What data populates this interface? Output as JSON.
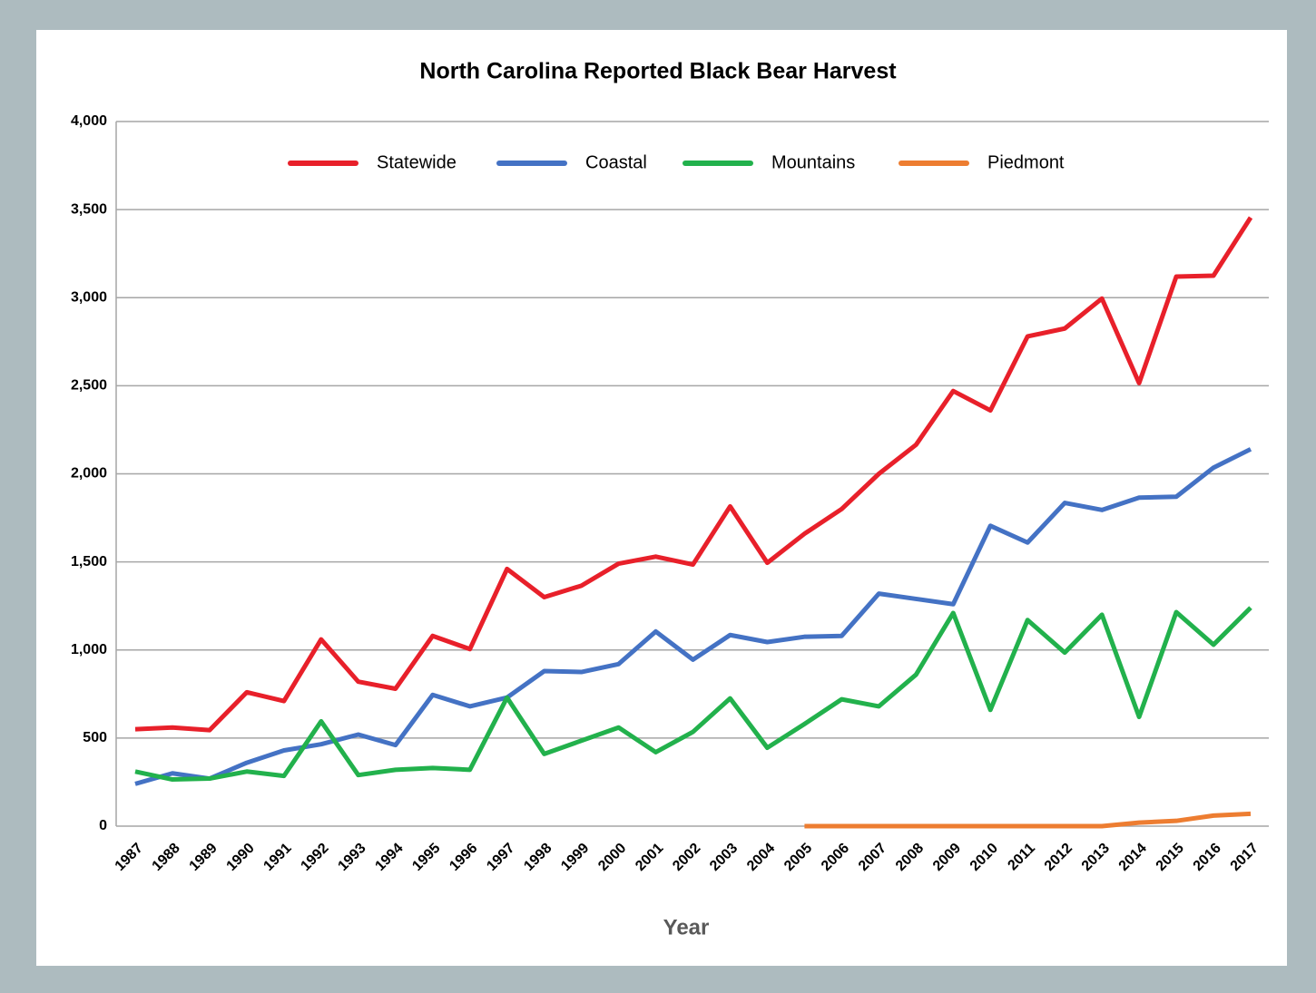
{
  "chart_data": {
    "type": "line",
    "title": "North Carolina Reported Black Bear Harvest",
    "x_label": "Year",
    "categories": [
      "1987",
      "1988",
      "1989",
      "1990",
      "1991",
      "1992",
      "1993",
      "1994",
      "1995",
      "1996",
      "1997",
      "1998",
      "1999",
      "2000",
      "2001",
      "2002",
      "2003",
      "2004",
      "2005",
      "2006",
      "2007",
      "2008",
      "2009",
      "2010",
      "2011",
      "2012",
      "2013",
      "2014",
      "2015",
      "2016",
      "2017"
    ],
    "series": [
      {
        "name": "Statewide",
        "color": "#e8202a",
        "values": [
          550,
          560,
          545,
          760,
          710,
          1060,
          820,
          780,
          1080,
          1005,
          1460,
          1300,
          1365,
          1490,
          1530,
          1485,
          1815,
          1495,
          1660,
          1800,
          2000,
          2165,
          2470,
          2360,
          2780,
          2825,
          2995,
          2515,
          3120,
          3125,
          3455
        ]
      },
      {
        "name": "Coastal",
        "color": "#4472c4",
        "values": [
          240,
          300,
          270,
          360,
          430,
          465,
          520,
          460,
          745,
          680,
          730,
          880,
          875,
          920,
          1105,
          945,
          1085,
          1045,
          1075,
          1080,
          1320,
          1290,
          1260,
          1705,
          1610,
          1835,
          1795,
          1865,
          1870,
          2035,
          2140
        ]
      },
      {
        "name": "Mountains",
        "color": "#22b14c",
        "values": [
          310,
          265,
          270,
          310,
          285,
          595,
          290,
          320,
          330,
          320,
          730,
          410,
          485,
          560,
          420,
          535,
          725,
          445,
          580,
          720,
          680,
          860,
          1210,
          660,
          1170,
          985,
          1200,
          620,
          1215,
          1030,
          1240
        ]
      },
      {
        "name": "Piedmont",
        "color": "#ed7d31",
        "values": [
          null,
          null,
          null,
          null,
          null,
          null,
          null,
          null,
          null,
          null,
          null,
          null,
          null,
          null,
          null,
          null,
          null,
          null,
          0,
          0,
          0,
          0,
          0,
          0,
          0,
          0,
          0,
          20,
          30,
          60,
          70
        ]
      }
    ],
    "ylim": [
      0,
      4000
    ],
    "yticks": [
      0,
      500,
      {
        "value": 1000,
        "label": "1,000"
      },
      {
        "value": 1500,
        "label": "1,500"
      },
      {
        "value": 2000,
        "label": "2,000"
      },
      {
        "value": 2500,
        "label": "2,500"
      },
      {
        "value": 3000,
        "label": "3,000"
      },
      {
        "value": 3500,
        "label": "3,500"
      },
      {
        "value": 4000,
        "label": "4,000"
      }
    ],
    "grid": true,
    "legend": "top"
  }
}
